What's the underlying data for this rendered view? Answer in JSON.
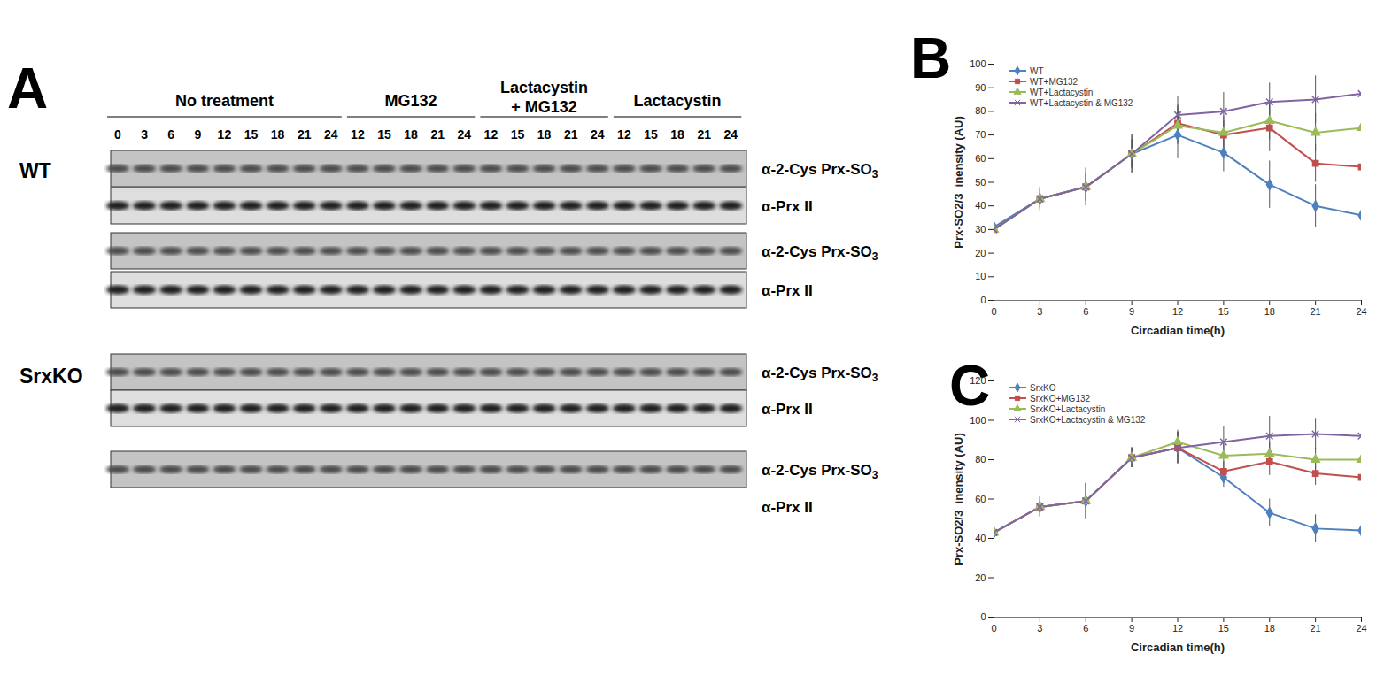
{
  "panel_A": {
    "label": "A",
    "groups": [
      {
        "label": [
          "No treatment"
        ],
        "lanes": [
          0,
          3,
          6,
          9,
          12,
          15,
          18,
          21,
          24
        ]
      },
      {
        "label": [
          "MG132"
        ],
        "lanes": [
          12,
          15,
          18,
          21,
          24
        ]
      },
      {
        "label": [
          "Lactacystin",
          "+ MG132"
        ],
        "lanes": [
          12,
          15,
          18,
          21,
          24
        ]
      },
      {
        "label": [
          "Lactacystin"
        ],
        "lanes": [
          12,
          15,
          18,
          21,
          24
        ]
      }
    ],
    "genotypes": [
      {
        "label": "WT",
        "strips": [
          {
            "antibody": "α-2-Cys Prx-SO3",
            "blot": true
          },
          {
            "antibody": "α-Prx II",
            "blot": true
          },
          {
            "antibody": "α-2-Cys Prx-SO3",
            "blot": true
          },
          {
            "antibody": "α-Prx II",
            "blot": true
          }
        ]
      },
      {
        "label": "SrxKO",
        "strips": [
          {
            "antibody": "α-2-Cys Prx-SO3",
            "blot": true
          },
          {
            "antibody": "α-Prx II",
            "blot": true
          },
          {
            "antibody": "α-2-Cys Prx-SO3",
            "blot": true
          },
          {
            "antibody": "α-Prx II",
            "blot": false
          }
        ]
      }
    ]
  },
  "chart_data": [
    {
      "type": "line",
      "panel_label": "B",
      "x_label": "Circadian time(h)",
      "y_label": "Prx-SO2/3  inensity (AU)",
      "x": [
        0,
        3,
        6,
        9,
        12,
        15,
        18,
        21,
        24
      ],
      "xlim": [
        0,
        24
      ],
      "xticks": [
        0,
        3,
        6,
        9,
        12,
        15,
        18,
        21,
        24
      ],
      "ylim": [
        0,
        100
      ],
      "yticks": [
        0,
        10,
        20,
        30,
        40,
        50,
        60,
        70,
        80,
        90,
        100
      ],
      "grid": false,
      "legend": "top-left",
      "series": [
        {
          "name": "WT",
          "color": "#4f81bd",
          "marker": "diamond",
          "values": [
            31,
            43,
            48,
            62,
            70,
            62.5,
            49,
            40,
            36
          ],
          "errors": [
            5,
            5,
            8,
            8,
            10,
            8,
            10,
            9,
            6
          ]
        },
        {
          "name": "WT+MG132",
          "color": "#c0504d",
          "marker": "square",
          "values": [
            30,
            43,
            48,
            62,
            75,
            70,
            73,
            58,
            56.5
          ],
          "errors": [
            3,
            4,
            6,
            6,
            8,
            6,
            10,
            8,
            5
          ]
        },
        {
          "name": "WT+Lactacystin",
          "color": "#9bbb59",
          "marker": "triangle",
          "values": [
            30,
            43,
            48,
            62,
            74,
            71,
            76,
            71,
            73
          ],
          "errors": [
            3,
            4,
            6,
            6,
            8,
            7,
            8,
            8,
            6
          ]
        },
        {
          "name": "WT+Lactacystin & MG132",
          "color": "#8064a2",
          "marker": "times",
          "values": [
            30,
            43,
            48,
            62,
            78.5,
            80,
            84,
            85,
            87.5
          ],
          "errors": [
            5,
            5,
            8,
            8,
            8,
            8,
            8,
            10,
            7
          ]
        }
      ]
    },
    {
      "type": "line",
      "panel_label": "C",
      "x_label": "Circadian time(h)",
      "y_label": "Prx-SO2/3  inensity (AU)",
      "x": [
        0,
        3,
        6,
        9,
        12,
        15,
        18,
        21,
        24
      ],
      "xlim": [
        0,
        24
      ],
      "xticks": [
        0,
        3,
        6,
        9,
        12,
        15,
        18,
        21,
        24
      ],
      "ylim": [
        0,
        120
      ],
      "yticks": [
        0,
        20,
        40,
        60,
        80,
        100,
        120
      ],
      "grid": false,
      "legend": "top-left",
      "series": [
        {
          "name": "SrxKO",
          "color": "#4f81bd",
          "marker": "diamond",
          "values": [
            43,
            56,
            59,
            81,
            86,
            71,
            53,
            45,
            44
          ],
          "errors": [
            7,
            5,
            9,
            5,
            8,
            5,
            7,
            7,
            7
          ]
        },
        {
          "name": "SrxKO+MG132",
          "color": "#c0504d",
          "marker": "square",
          "values": [
            43,
            56,
            59,
            81,
            86,
            74,
            79,
            73,
            71
          ],
          "errors": [
            7,
            5,
            9,
            5,
            8,
            5,
            7,
            6,
            6
          ]
        },
        {
          "name": "SrxKO+Lactacystin",
          "color": "#9bbb59",
          "marker": "triangle",
          "values": [
            43,
            56,
            59,
            81,
            89,
            82,
            83,
            80,
            80
          ],
          "errors": [
            7,
            5,
            9,
            5,
            6,
            6,
            6,
            6,
            6
          ]
        },
        {
          "name": "SrxKO+Lactacystin & MG132",
          "color": "#8064a2",
          "marker": "times",
          "values": [
            43,
            56,
            59,
            81,
            86,
            89,
            92,
            93,
            92
          ],
          "errors": [
            7,
            5,
            9,
            5,
            8,
            8,
            10,
            8,
            6
          ]
        }
      ]
    }
  ]
}
